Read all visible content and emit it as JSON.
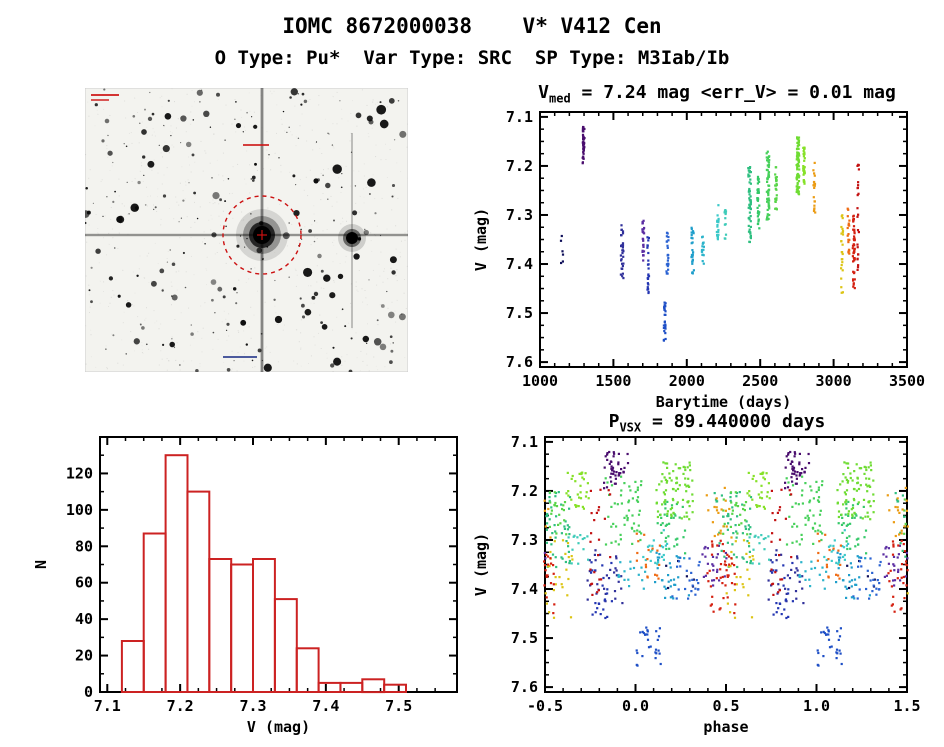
{
  "page": {
    "title": "IOMC 8672000038    V* V412 Cen",
    "subtitle": "O Type: Pu*  Var Type: SRC  SP Type: M3Iab/Ib"
  },
  "finding_chart": {
    "name": "finding-chart",
    "background": "#f3f3ef",
    "target_circle_color": "#cc1111",
    "annotation_color": "#cc1111"
  },
  "chart_data": [
    {
      "id": "lightcurve",
      "type": "scatter",
      "title": "V_med = 7.24 mag <err_V> = 0.01 mag",
      "title_parts": {
        "pre": "V",
        "sub": "med",
        "post": " = 7.24 mag <err_V> = 0.01 mag"
      },
      "xlabel": "Barytime (days)",
      "ylabel": "V (mag)",
      "xlim": [
        1000,
        3500
      ],
      "ylim": [
        7.09,
        7.61
      ],
      "invert_y": true,
      "xticks": [
        1000,
        1500,
        2000,
        2500,
        3000,
        3500
      ],
      "xtick_labels": [
        "1000",
        "1500",
        "2000",
        "2500",
        "3000",
        "3500"
      ],
      "yticks": [
        7.1,
        7.2,
        7.3,
        7.4,
        7.5,
        7.6
      ],
      "ytick_labels": [
        "7.1",
        "7.2",
        "7.3",
        "7.4",
        "7.5",
        "7.6"
      ],
      "xminor": 100,
      "yminor": 0.025,
      "grid": false,
      "legend": false,
      "clusters_format": [
        "t_center_days",
        "t_halfwidth_days",
        "v_min_mag",
        "v_max_mag",
        "n_points",
        "color"
      ],
      "clusters": [
        [
          1150,
          8,
          7.34,
          7.41,
          6,
          "#10105a"
        ],
        [
          1297,
          6,
          7.12,
          7.2,
          45,
          "#4a0e6e"
        ],
        [
          1560,
          9,
          7.32,
          7.43,
          30,
          "#30309a"
        ],
        [
          1703,
          7,
          7.31,
          7.4,
          24,
          "#5b2da2"
        ],
        [
          1737,
          6,
          7.34,
          7.46,
          24,
          "#2436b2"
        ],
        [
          1849,
          7,
          7.47,
          7.56,
          28,
          "#1e4fc6"
        ],
        [
          1868,
          7,
          7.33,
          7.42,
          24,
          "#2a62d2"
        ],
        [
          2040,
          9,
          7.32,
          7.42,
          30,
          "#1f9ecb"
        ],
        [
          2110,
          7,
          7.34,
          7.4,
          16,
          "#2cb4cb"
        ],
        [
          2210,
          7,
          7.28,
          7.35,
          20,
          "#3bc9c9"
        ],
        [
          2262,
          6,
          7.29,
          7.35,
          14,
          "#3ecbb9"
        ],
        [
          2428,
          9,
          7.2,
          7.36,
          55,
          "#2fbf80"
        ],
        [
          2487,
          7,
          7.22,
          7.33,
          35,
          "#35c969"
        ],
        [
          2553,
          9,
          7.17,
          7.31,
          55,
          "#46d05a"
        ],
        [
          2608,
          6,
          7.2,
          7.29,
          25,
          "#58d548"
        ],
        [
          2757,
          9,
          7.14,
          7.26,
          80,
          "#6fdc33"
        ],
        [
          2798,
          6,
          7.16,
          7.24,
          30,
          "#86e128"
        ],
        [
          2868,
          7,
          7.19,
          7.3,
          20,
          "#eb9c14"
        ],
        [
          3058,
          7,
          7.3,
          7.46,
          25,
          "#dcc414"
        ],
        [
          3102,
          6,
          7.27,
          7.38,
          18,
          "#ef6a12"
        ],
        [
          3138,
          7,
          7.3,
          7.45,
          45,
          "#d42010"
        ],
        [
          3168,
          6,
          7.19,
          7.42,
          24,
          "#c31111"
        ]
      ]
    },
    {
      "id": "histogram",
      "type": "bar",
      "xlabel": "V (mag)",
      "ylabel": "N",
      "xlim": [
        7.09,
        7.58
      ],
      "ylim": [
        0,
        140
      ],
      "xticks": [
        7.1,
        7.2,
        7.3,
        7.4,
        7.5
      ],
      "xtick_labels": [
        "7.1",
        "7.2",
        "7.3",
        "7.4",
        "7.5"
      ],
      "yticks": [
        0,
        20,
        40,
        60,
        80,
        100,
        120
      ],
      "ytick_labels": [
        "0",
        "20",
        "40",
        "60",
        "80",
        "100",
        "120"
      ],
      "xminor": 0.025,
      "yminor": 10,
      "bin_start": 7.12,
      "bin_width": 0.03,
      "counts": [
        28,
        87,
        130,
        110,
        73,
        70,
        73,
        51,
        24,
        5,
        5,
        7,
        4
      ],
      "color": "#cc2222",
      "grid": false
    },
    {
      "id": "phase",
      "type": "scatter",
      "title": "P_VSX = 89.440000 days",
      "title_parts": {
        "pre": "P",
        "sub": "VSX",
        "post": " = 89.440000 days"
      },
      "xlabel": "phase",
      "ylabel": "V (mag)",
      "xlim": [
        -0.5,
        1.5
      ],
      "ylim": [
        7.09,
        7.61
      ],
      "invert_y": true,
      "xticks": [
        -0.5,
        0,
        0.5,
        1,
        1.5
      ],
      "xtick_labels": [
        "-0.5",
        "0.0",
        "0.5",
        "1.0",
        "1.5"
      ],
      "yticks": [
        7.1,
        7.2,
        7.3,
        7.4,
        7.5,
        7.6
      ],
      "ytick_labels": [
        "7.1",
        "7.2",
        "7.3",
        "7.4",
        "7.5",
        "7.6"
      ],
      "xminor": 0.1,
      "yminor": 0.025,
      "period_days": 89.44,
      "epoch_day": 1038.3,
      "points_source": "lightcurve",
      "grid": false
    }
  ]
}
